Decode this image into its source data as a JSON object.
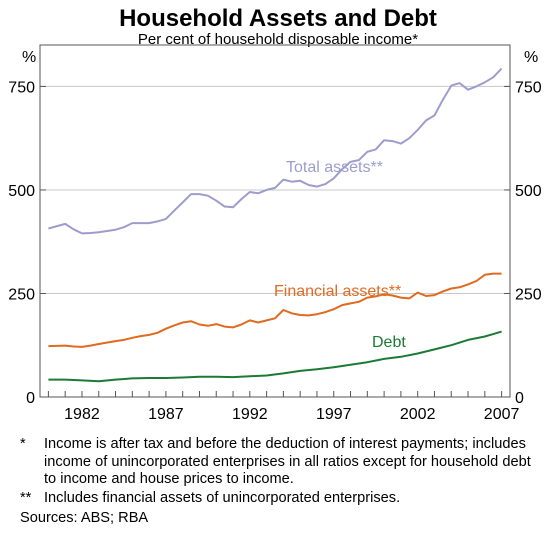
{
  "chart_data": {
    "type": "line",
    "title": "Household Assets and Debt",
    "subtitle": "Per cent of household disposable income*",
    "ylabel_left": "%",
    "ylabel_right": "%",
    "ylim": [
      0,
      850
    ],
    "yticks": [
      0,
      250,
      500,
      750
    ],
    "xlim": [
      1979.5,
      2007.5
    ],
    "xticks": [
      1982,
      1987,
      1992,
      1997,
      2002,
      2007
    ],
    "grid": true,
    "series": [
      {
        "name": "Total assets**",
        "color": "#9e9ccc",
        "x": [
          1980,
          1981,
          1981.5,
          1982,
          1982.5,
          1983,
          1984,
          1984.5,
          1985,
          1985.5,
          1986,
          1986.5,
          1987,
          1987.5,
          1988,
          1988.5,
          1989,
          1989.5,
          1990,
          1990.5,
          1991,
          1991.5,
          1992,
          1992.5,
          1993,
          1993.5,
          1994,
          1994.5,
          1995,
          1995.5,
          1996,
          1996.5,
          1997,
          1997.5,
          1998,
          1998.5,
          1999,
          1999.5,
          2000,
          2000.5,
          2001,
          2001.5,
          2002,
          2002.5,
          2003,
          2003.5,
          2004,
          2004.5,
          2005,
          2005.5,
          2006,
          2006.5,
          2007
        ],
        "values": [
          407,
          418,
          405,
          395,
          396,
          398,
          404,
          410,
          420,
          420,
          420,
          424,
          430,
          450,
          470,
          490,
          490,
          486,
          474,
          460,
          458,
          478,
          495,
          492,
          500,
          505,
          525,
          520,
          522,
          512,
          508,
          514,
          528,
          550,
          568,
          572,
          592,
          598,
          620,
          618,
          612,
          625,
          645,
          668,
          680,
          718,
          752,
          758,
          742,
          750,
          760,
          772,
          793
        ]
      },
      {
        "name": "Financial assets**",
        "color": "#e06a20",
        "x": [
          1980,
          1981,
          1981.5,
          1982,
          1982.5,
          1983,
          1984,
          1984.5,
          1985,
          1985.5,
          1986,
          1986.5,
          1987,
          1987.5,
          1988,
          1988.5,
          1989,
          1989.5,
          1990,
          1990.5,
          1991,
          1991.5,
          1992,
          1992.5,
          1993,
          1993.5,
          1994,
          1994.5,
          1995,
          1995.5,
          1996,
          1996.5,
          1997,
          1997.5,
          1998,
          1998.5,
          1999,
          1999.5,
          2000,
          2000.5,
          2001,
          2001.5,
          2002,
          2002.5,
          2003,
          2003.5,
          2004,
          2004.5,
          2005,
          2005.5,
          2006,
          2006.5,
          2007
        ],
        "values": [
          123,
          124,
          122,
          121,
          124,
          128,
          135,
          138,
          143,
          147,
          150,
          155,
          165,
          173,
          180,
          183,
          175,
          172,
          176,
          170,
          168,
          175,
          185,
          180,
          185,
          190,
          210,
          202,
          198,
          197,
          200,
          205,
          212,
          222,
          226,
          230,
          240,
          243,
          248,
          245,
          240,
          238,
          252,
          244,
          246,
          255,
          262,
          265,
          272,
          280,
          295,
          298,
          298
        ]
      },
      {
        "name": "Debt",
        "color": "#1c7a34",
        "x": [
          1980,
          1981,
          1982,
          1983,
          1984,
          1985,
          1986,
          1987,
          1988,
          1989,
          1990,
          1991,
          1992,
          1993,
          1994,
          1995,
          1996,
          1997,
          1998,
          1999,
          2000,
          2001,
          2002,
          2003,
          2004,
          2005,
          2006,
          2006.5,
          2007
        ],
        "values": [
          42,
          42,
          40,
          38,
          42,
          45,
          46,
          46,
          47,
          49,
          49,
          48,
          50,
          52,
          57,
          63,
          67,
          72,
          78,
          84,
          92,
          97,
          105,
          115,
          125,
          138,
          146,
          152,
          158
        ]
      }
    ],
    "series_labels": [
      "Total assets**",
      "Financial assets**",
      "Debt"
    ],
    "footnotes": [
      {
        "mark": "*",
        "text": "Income is after tax and before the deduction of interest payments; includes income of unincorporated enterprises in all ratios except for household debt to income and house prices to income."
      },
      {
        "mark": "**",
        "text": "Includes financial assets of unincorporated enterprises."
      }
    ],
    "sources": "Sources: ABS; RBA"
  }
}
